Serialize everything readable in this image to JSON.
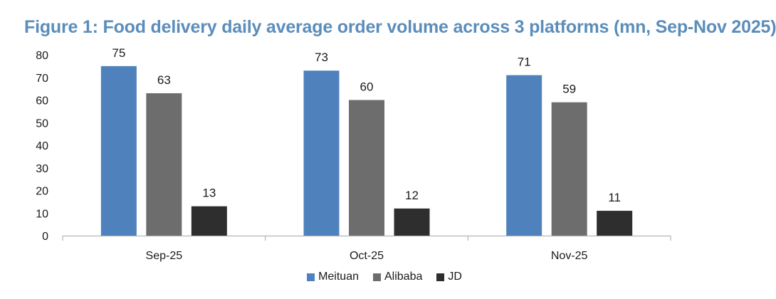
{
  "chart_data": {
    "type": "bar",
    "title": "Figure 1: Food delivery daily average order volume across 3 platforms (mn, Sep-Nov 2025)",
    "xlabel": "",
    "ylabel": "",
    "categories": [
      "Sep-25",
      "Oct-25",
      "Nov-25"
    ],
    "ylim": [
      0,
      80
    ],
    "yticks": [
      0,
      10,
      20,
      30,
      40,
      50,
      60,
      70,
      80
    ],
    "grid": false,
    "legend_position": "bottom",
    "series": [
      {
        "name": "Meituan",
        "color": "#4f81bd",
        "values": [
          75,
          73,
          71
        ]
      },
      {
        "name": "Alibaba",
        "color": "#6d6d6d",
        "values": [
          63,
          60,
          59
        ]
      },
      {
        "name": "JD",
        "color": "#2e2e2e",
        "values": [
          13,
          12,
          11
        ]
      }
    ]
  }
}
